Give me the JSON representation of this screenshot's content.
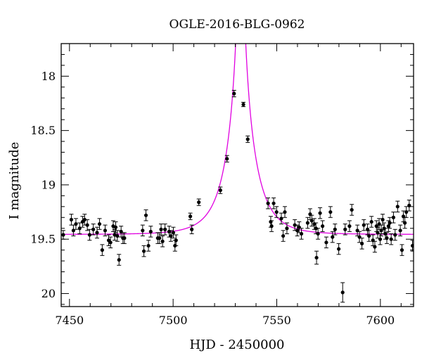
{
  "chart_data": {
    "type": "scatter",
    "title": "OGLE-2016-BLG-0962",
    "xlabel": "HJD - 2450000",
    "ylabel": "I magnitude",
    "xlim": [
      7446,
      7616
    ],
    "ylim": [
      20.12,
      17.7
    ],
    "y_inverted": true,
    "grid": false,
    "legend": "none",
    "x_ticks": [
      7450,
      7500,
      7550,
      7600
    ],
    "x_tick_labels": [
      "7450",
      "7500",
      "7550",
      "7600"
    ],
    "y_ticks": [
      18,
      18.5,
      19,
      19.5,
      20
    ],
    "y_tick_labels": [
      "18",
      "18.5",
      "19",
      "19.5",
      "20"
    ],
    "colors": {
      "points": "#000000",
      "model": "#e000e0",
      "axes": "#000000"
    },
    "series": [
      {
        "kind": "points-with-errorbars",
        "points": [
          {
            "x": 7447.0,
            "y": 19.46,
            "err": 0.04
          },
          {
            "x": 7450.9,
            "y": 19.32,
            "err": 0.05
          },
          {
            "x": 7451.9,
            "y": 19.42,
            "err": 0.05
          },
          {
            "x": 7453.1,
            "y": 19.36,
            "err": 0.05
          },
          {
            "x": 7454.9,
            "y": 19.4,
            "err": 0.05
          },
          {
            "x": 7456.3,
            "y": 19.34,
            "err": 0.05
          },
          {
            "x": 7457.3,
            "y": 19.32,
            "err": 0.05
          },
          {
            "x": 7458.6,
            "y": 19.37,
            "err": 0.05
          },
          {
            "x": 7459.7,
            "y": 19.46,
            "err": 0.05
          },
          {
            "x": 7461.5,
            "y": 19.41,
            "err": 0.05
          },
          {
            "x": 7463.3,
            "y": 19.44,
            "err": 0.05
          },
          {
            "x": 7464.5,
            "y": 19.36,
            "err": 0.05
          },
          {
            "x": 7465.8,
            "y": 19.6,
            "err": 0.05
          },
          {
            "x": 7467.2,
            "y": 19.42,
            "err": 0.05
          },
          {
            "x": 7468.9,
            "y": 19.51,
            "err": 0.05
          },
          {
            "x": 7469.8,
            "y": 19.53,
            "err": 0.05
          },
          {
            "x": 7471.1,
            "y": 19.38,
            "err": 0.05
          },
          {
            "x": 7471.8,
            "y": 19.46,
            "err": 0.05
          },
          {
            "x": 7472.3,
            "y": 19.39,
            "err": 0.05
          },
          {
            "x": 7473.1,
            "y": 19.47,
            "err": 0.05
          },
          {
            "x": 7473.9,
            "y": 19.69,
            "err": 0.05
          },
          {
            "x": 7474.9,
            "y": 19.43,
            "err": 0.05
          },
          {
            "x": 7475.8,
            "y": 19.49,
            "err": 0.05
          },
          {
            "x": 7476.5,
            "y": 19.49,
            "err": 0.05
          },
          {
            "x": 7485.3,
            "y": 19.42,
            "err": 0.05
          },
          {
            "x": 7485.9,
            "y": 19.61,
            "err": 0.05
          },
          {
            "x": 7486.9,
            "y": 19.28,
            "err": 0.05
          },
          {
            "x": 7488.1,
            "y": 19.56,
            "err": 0.05
          },
          {
            "x": 7489.2,
            "y": 19.43,
            "err": 0.05
          },
          {
            "x": 7492.6,
            "y": 19.49,
            "err": 0.05
          },
          {
            "x": 7493.4,
            "y": 19.49,
            "err": 0.05
          },
          {
            "x": 7494.2,
            "y": 19.41,
            "err": 0.05
          },
          {
            "x": 7494.9,
            "y": 19.52,
            "err": 0.05
          },
          {
            "x": 7496.1,
            "y": 19.41,
            "err": 0.05
          },
          {
            "x": 7498.1,
            "y": 19.43,
            "err": 0.05
          },
          {
            "x": 7498.9,
            "y": 19.47,
            "err": 0.05
          },
          {
            "x": 7500.1,
            "y": 19.44,
            "err": 0.05
          },
          {
            "x": 7500.9,
            "y": 19.56,
            "err": 0.05
          },
          {
            "x": 7501.4,
            "y": 19.51,
            "err": 0.05
          },
          {
            "x": 7508.3,
            "y": 19.29,
            "err": 0.03
          },
          {
            "x": 7509.0,
            "y": 19.41,
            "err": 0.04
          },
          {
            "x": 7512.4,
            "y": 19.16,
            "err": 0.03
          },
          {
            "x": 7522.8,
            "y": 19.05,
            "err": 0.03
          },
          {
            "x": 7526.0,
            "y": 18.76,
            "err": 0.03
          },
          {
            "x": 7529.4,
            "y": 18.16,
            "err": 0.03
          },
          {
            "x": 7533.9,
            "y": 18.26,
            "err": 0.02
          },
          {
            "x": 7536.0,
            "y": 18.58,
            "err": 0.03
          },
          {
            "x": 7545.8,
            "y": 19.17,
            "err": 0.05
          },
          {
            "x": 7547.1,
            "y": 19.34,
            "err": 0.05
          },
          {
            "x": 7547.5,
            "y": 19.38,
            "err": 0.05
          },
          {
            "x": 7548.5,
            "y": 19.17,
            "err": 0.05
          },
          {
            "x": 7549.9,
            "y": 19.25,
            "err": 0.05
          },
          {
            "x": 7552.2,
            "y": 19.31,
            "err": 0.05
          },
          {
            "x": 7553.1,
            "y": 19.47,
            "err": 0.05
          },
          {
            "x": 7553.9,
            "y": 19.25,
            "err": 0.05
          },
          {
            "x": 7554.9,
            "y": 19.4,
            "err": 0.05
          },
          {
            "x": 7558.7,
            "y": 19.37,
            "err": 0.05
          },
          {
            "x": 7559.9,
            "y": 19.42,
            "err": 0.05
          },
          {
            "x": 7560.8,
            "y": 19.39,
            "err": 0.05
          },
          {
            "x": 7561.9,
            "y": 19.45,
            "err": 0.05
          },
          {
            "x": 7564.9,
            "y": 19.35,
            "err": 0.05
          },
          {
            "x": 7566.1,
            "y": 19.27,
            "err": 0.05
          },
          {
            "x": 7566.9,
            "y": 19.33,
            "err": 0.05
          },
          {
            "x": 7568.1,
            "y": 19.36,
            "err": 0.05
          },
          {
            "x": 7568.9,
            "y": 19.4,
            "err": 0.05
          },
          {
            "x": 7569.2,
            "y": 19.67,
            "err": 0.06
          },
          {
            "x": 7569.9,
            "y": 19.45,
            "err": 0.05
          },
          {
            "x": 7570.9,
            "y": 19.26,
            "err": 0.05
          },
          {
            "x": 7572.1,
            "y": 19.38,
            "err": 0.05
          },
          {
            "x": 7573.9,
            "y": 19.53,
            "err": 0.05
          },
          {
            "x": 7575.9,
            "y": 19.25,
            "err": 0.05
          },
          {
            "x": 7576.9,
            "y": 19.48,
            "err": 0.05
          },
          {
            "x": 7578.1,
            "y": 19.41,
            "err": 0.05
          },
          {
            "x": 7579.9,
            "y": 19.59,
            "err": 0.05
          },
          {
            "x": 7581.8,
            "y": 19.99,
            "err": 0.09
          },
          {
            "x": 7583.0,
            "y": 19.41,
            "err": 0.05
          },
          {
            "x": 7585.1,
            "y": 19.38,
            "err": 0.05
          },
          {
            "x": 7586.2,
            "y": 19.23,
            "err": 0.05
          },
          {
            "x": 7588.9,
            "y": 19.42,
            "err": 0.05
          },
          {
            "x": 7589.9,
            "y": 19.48,
            "err": 0.05
          },
          {
            "x": 7591.1,
            "y": 19.54,
            "err": 0.05
          },
          {
            "x": 7592.0,
            "y": 19.37,
            "err": 0.05
          },
          {
            "x": 7593.8,
            "y": 19.41,
            "err": 0.05
          },
          {
            "x": 7594.5,
            "y": 19.47,
            "err": 0.05
          },
          {
            "x": 7595.7,
            "y": 19.34,
            "err": 0.05
          },
          {
            "x": 7596.4,
            "y": 19.51,
            "err": 0.05
          },
          {
            "x": 7597.3,
            "y": 19.57,
            "err": 0.05
          },
          {
            "x": 7598.1,
            "y": 19.38,
            "err": 0.05
          },
          {
            "x": 7598.7,
            "y": 19.44,
            "err": 0.05
          },
          {
            "x": 7599.4,
            "y": 19.36,
            "err": 0.05
          },
          {
            "x": 7599.9,
            "y": 19.5,
            "err": 0.05
          },
          {
            "x": 7600.4,
            "y": 19.42,
            "err": 0.05
          },
          {
            "x": 7601.1,
            "y": 19.32,
            "err": 0.05
          },
          {
            "x": 7601.8,
            "y": 19.4,
            "err": 0.05
          },
          {
            "x": 7602.4,
            "y": 19.45,
            "err": 0.05
          },
          {
            "x": 7603.1,
            "y": 19.49,
            "err": 0.05
          },
          {
            "x": 7603.9,
            "y": 19.38,
            "err": 0.05
          },
          {
            "x": 7604.5,
            "y": 19.35,
            "err": 0.05
          },
          {
            "x": 7605.2,
            "y": 19.5,
            "err": 0.05
          },
          {
            "x": 7606.3,
            "y": 19.3,
            "err": 0.05
          },
          {
            "x": 7607.1,
            "y": 19.46,
            "err": 0.05
          },
          {
            "x": 7608.3,
            "y": 19.2,
            "err": 0.05
          },
          {
            "x": 7609.6,
            "y": 19.42,
            "err": 0.05
          },
          {
            "x": 7610.4,
            "y": 19.6,
            "err": 0.05
          },
          {
            "x": 7611.1,
            "y": 19.29,
            "err": 0.05
          },
          {
            "x": 7611.8,
            "y": 19.35,
            "err": 0.05
          },
          {
            "x": 7612.5,
            "y": 19.25,
            "err": 0.05
          },
          {
            "x": 7613.9,
            "y": 19.19,
            "err": 0.05
          },
          {
            "x": 7615.5,
            "y": 19.56,
            "err": 0.05
          }
        ]
      },
      {
        "kind": "model-line",
        "t0": 7532.6,
        "tE": 12.5,
        "u0": 0.05,
        "baseline_mag": 19.456
      }
    ]
  }
}
